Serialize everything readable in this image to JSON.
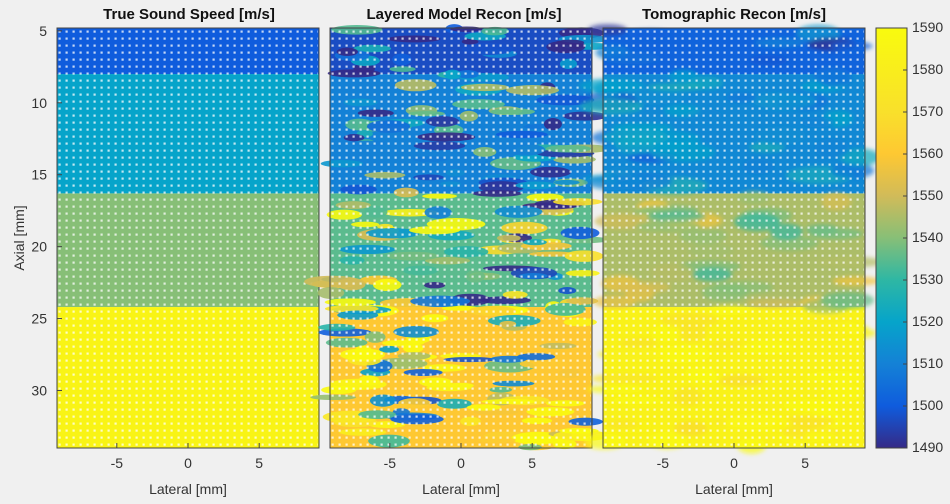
{
  "figure": {
    "panels": [
      {
        "title": "True Sound Speed [m/s]",
        "xlabel": "Lateral [mm]"
      },
      {
        "title": "Layered Model Recon [m/s]",
        "xlabel": "Lateral [mm]"
      },
      {
        "title": "Tomographic Recon [m/s]",
        "xlabel": "Lateral [mm]"
      }
    ],
    "ylabel": "Axial [mm]"
  },
  "chart_data": {
    "type": "heatmap",
    "colormap": "parula",
    "xlim": [
      -9.2,
      9.2
    ],
    "ylim": [
      34,
      4.8
    ],
    "xticks": [
      -5,
      0,
      5
    ],
    "yticks": [
      5,
      10,
      15,
      20,
      25,
      30
    ],
    "colorbar": {
      "clim": [
        1490,
        1590
      ],
      "ticks": [
        1490,
        1500,
        1510,
        1520,
        1530,
        1540,
        1550,
        1560,
        1570,
        1580,
        1590
      ]
    },
    "panels": [
      {
        "title": "True Sound Speed [m/s]",
        "xlabel": "Lateral [mm]",
        "ylabel": "Axial [mm]",
        "pattern": "layers",
        "layers": [
          {
            "axial_range": [
              4.8,
              8
            ],
            "sound_speed": 1500
          },
          {
            "axial_range": [
              8,
              16.3
            ],
            "sound_speed": 1520
          },
          {
            "axial_range": [
              16.3,
              24.2
            ],
            "sound_speed": 1540
          },
          {
            "axial_range": [
              24.2,
              34
            ],
            "sound_speed": 1585
          }
        ]
      },
      {
        "title": "Layered Model Recon [m/s]",
        "xlabel": "Lateral [mm]",
        "ylabel": "",
        "pattern": "noisy",
        "layers": [
          {
            "axial_range": [
              4.8,
              8
            ],
            "sound_speed": 1497
          },
          {
            "axial_range": [
              8,
              16.3
            ],
            "sound_speed": 1510
          },
          {
            "axial_range": [
              16.3,
              24.2
            ],
            "sound_speed": 1535
          },
          {
            "axial_range": [
              24.2,
              34
            ],
            "sound_speed": 1560
          }
        ]
      },
      {
        "title": "Tomographic Recon [m/s]",
        "xlabel": "Lateral [mm]",
        "ylabel": "",
        "pattern": "smooth",
        "layers": [
          {
            "axial_range": [
              4.8,
              8
            ],
            "sound_speed": 1502
          },
          {
            "axial_range": [
              8,
              16.3
            ],
            "sound_speed": 1512
          },
          {
            "axial_range": [
              16.3,
              24.2
            ],
            "sound_speed": 1545
          },
          {
            "axial_range": [
              24.2,
              34
            ],
            "sound_speed": 1583
          }
        ]
      }
    ]
  }
}
